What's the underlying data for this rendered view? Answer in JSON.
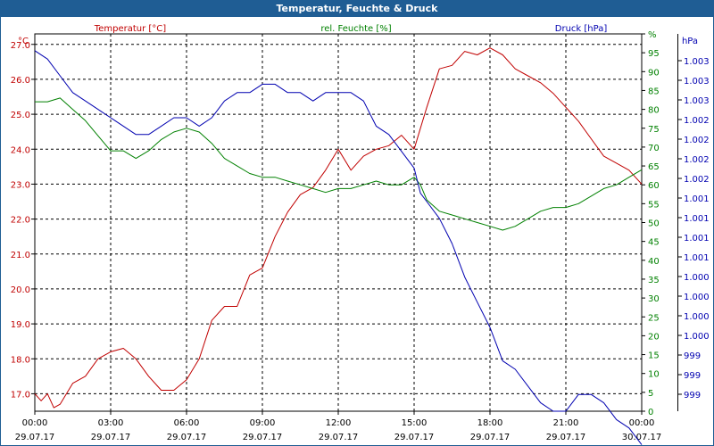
{
  "window": {
    "title": "Temperatur, Feuchte & Druck"
  },
  "colors": {
    "temperature": "#c00000",
    "humidity": "#008000",
    "pressure": "#0000b0",
    "title_bar": "#1f5d94",
    "grid": "#000000"
  },
  "chart_data": {
    "type": "line",
    "title": "Temperatur, Feuchte & Druck",
    "grid": true,
    "x_range": [
      "29.07.17 00:00",
      "30.07.17 00:00"
    ],
    "x_ticks": [
      {
        "time": "00:00",
        "date": "29.07.17"
      },
      {
        "time": "03:00",
        "date": "29.07.17"
      },
      {
        "time": "06:00",
        "date": "29.07.17"
      },
      {
        "time": "09:00",
        "date": "29.07.17"
      },
      {
        "time": "12:00",
        "date": "29.07.17"
      },
      {
        "time": "15:00",
        "date": "29.07.17"
      },
      {
        "time": "18:00",
        "date": "29.07.17"
      },
      {
        "time": "21:00",
        "date": "29.07.17"
      },
      {
        "time": "00:00",
        "date": "30.07.17"
      }
    ],
    "axes": {
      "left": {
        "label": "Temperatur [°C]",
        "unit": "°C",
        "range": [
          16.5,
          27.3
        ],
        "ticks": [
          "17.0",
          "18.0",
          "19.0",
          "20.0",
          "21.0",
          "22.0",
          "23.0",
          "24.0",
          "25.0",
          "26.0",
          "27.0"
        ]
      },
      "right_inner": {
        "label": "rel. Feuchte [%]",
        "unit": "%",
        "range": [
          0,
          100
        ],
        "ticks": [
          "0",
          "5",
          "10",
          "15",
          "20",
          "25",
          "30",
          "35",
          "40",
          "45",
          "50",
          "55",
          "60",
          "65",
          "70",
          "75",
          "80",
          "85",
          "90",
          "95",
          "%"
        ]
      },
      "right_outer": {
        "label": "Druck [hPa]",
        "unit": "hPa",
        "range": [
          999.0,
          1003.5
        ],
        "ticks": [
          "999",
          "999",
          "999",
          "1.000",
          "1.000",
          "1.000",
          "1.000",
          "1.001",
          "1.001",
          "1.001",
          "1.001",
          "1.002",
          "1.002",
          "1.002",
          "1.002",
          "1.003",
          "1.003",
          "1.003"
        ]
      }
    },
    "series": [
      {
        "name": "Temperatur [°C]",
        "axis": "left",
        "x": [
          0,
          0.25,
          0.5,
          0.75,
          1,
          1.5,
          2,
          2.5,
          3,
          3.5,
          4,
          4.5,
          5,
          5.5,
          6,
          6.5,
          7,
          7.5,
          8,
          8.5,
          9,
          9.5,
          10,
          10.5,
          11,
          11.5,
          12,
          12.5,
          13,
          13.5,
          14,
          14.5,
          15,
          15.25,
          15.5,
          16,
          16.5,
          17,
          17.5,
          18,
          18.5,
          19,
          19.5,
          20,
          20.5,
          21,
          21.5,
          22,
          22.5,
          23,
          23.5,
          24
        ],
        "values": [
          17.0,
          16.8,
          17.0,
          16.6,
          16.7,
          17.3,
          17.5,
          18.0,
          18.2,
          18.3,
          18.0,
          17.5,
          17.1,
          17.1,
          17.4,
          18.0,
          19.1,
          19.5,
          19.5,
          20.4,
          20.6,
          21.5,
          22.2,
          22.7,
          22.9,
          23.4,
          24.0,
          23.4,
          23.8,
          24.0,
          24.1,
          24.4,
          24.0,
          24.6,
          25.2,
          26.3,
          26.4,
          26.8,
          26.7,
          26.9,
          26.7,
          26.3,
          26.1,
          25.9,
          25.6,
          25.2,
          24.8,
          24.3,
          23.8,
          23.6,
          23.4,
          23.0
        ]
      },
      {
        "name": "rel. Feuchte [%]",
        "axis": "right_inner",
        "x": [
          0,
          0.5,
          1,
          1.5,
          2,
          2.5,
          3,
          3.5,
          4,
          4.5,
          5,
          5.5,
          6,
          6.5,
          7,
          7.5,
          8,
          8.5,
          9,
          9.5,
          10,
          10.5,
          11,
          11.5,
          12,
          12.5,
          13,
          13.5,
          14,
          14.5,
          15,
          15.25,
          15.5,
          16,
          16.5,
          17,
          17.5,
          18,
          18.5,
          19,
          19.5,
          20,
          20.5,
          21,
          21.5,
          22,
          22.5,
          23,
          23.5,
          24
        ],
        "values": [
          82,
          82,
          83,
          80,
          77,
          73,
          69,
          69,
          67,
          69,
          72,
          74,
          75,
          74,
          71,
          67,
          65,
          63,
          62,
          62,
          61,
          60,
          59,
          58,
          59,
          59,
          60,
          61,
          60,
          60,
          62,
          60,
          56,
          53,
          52,
          51,
          50,
          49,
          48,
          49,
          51,
          53,
          54,
          54,
          55,
          57,
          59,
          60,
          62,
          64
        ]
      },
      {
        "name": "Druck [hPa]",
        "axis": "right_outer",
        "x": [
          0,
          0.5,
          1,
          1.5,
          2,
          2.5,
          3,
          3.5,
          4,
          4.5,
          5,
          5.5,
          6,
          6.5,
          7,
          7.5,
          8,
          8.5,
          9,
          9.5,
          10,
          10.5,
          11,
          11.5,
          12,
          12.5,
          13,
          13.5,
          14,
          14.5,
          15,
          15.25,
          15.5,
          16,
          16.5,
          17,
          17.5,
          18,
          18.5,
          19,
          19.5,
          20,
          20.5,
          21,
          21.5,
          22,
          22.5,
          23,
          23.5,
          24
        ],
        "values": [
          1003.3,
          1003.2,
          1003.0,
          1002.8,
          1002.7,
          1002.6,
          1002.5,
          1002.4,
          1002.3,
          1002.3,
          1002.4,
          1002.5,
          1002.5,
          1002.4,
          1002.5,
          1002.7,
          1002.8,
          1002.8,
          1002.9,
          1002.9,
          1002.8,
          1002.8,
          1002.7,
          1002.8,
          1002.8,
          1002.8,
          1002.7,
          1002.4,
          1002.3,
          1002.1,
          1001.9,
          1001.6,
          1001.5,
          1001.3,
          1001.0,
          1000.6,
          1000.3,
          1000.0,
          999.6,
          999.5,
          999.3,
          999.1,
          999.0,
          999.0,
          999.2,
          999.2,
          999.1,
          998.9,
          998.8,
          998.6
        ]
      }
    ]
  }
}
